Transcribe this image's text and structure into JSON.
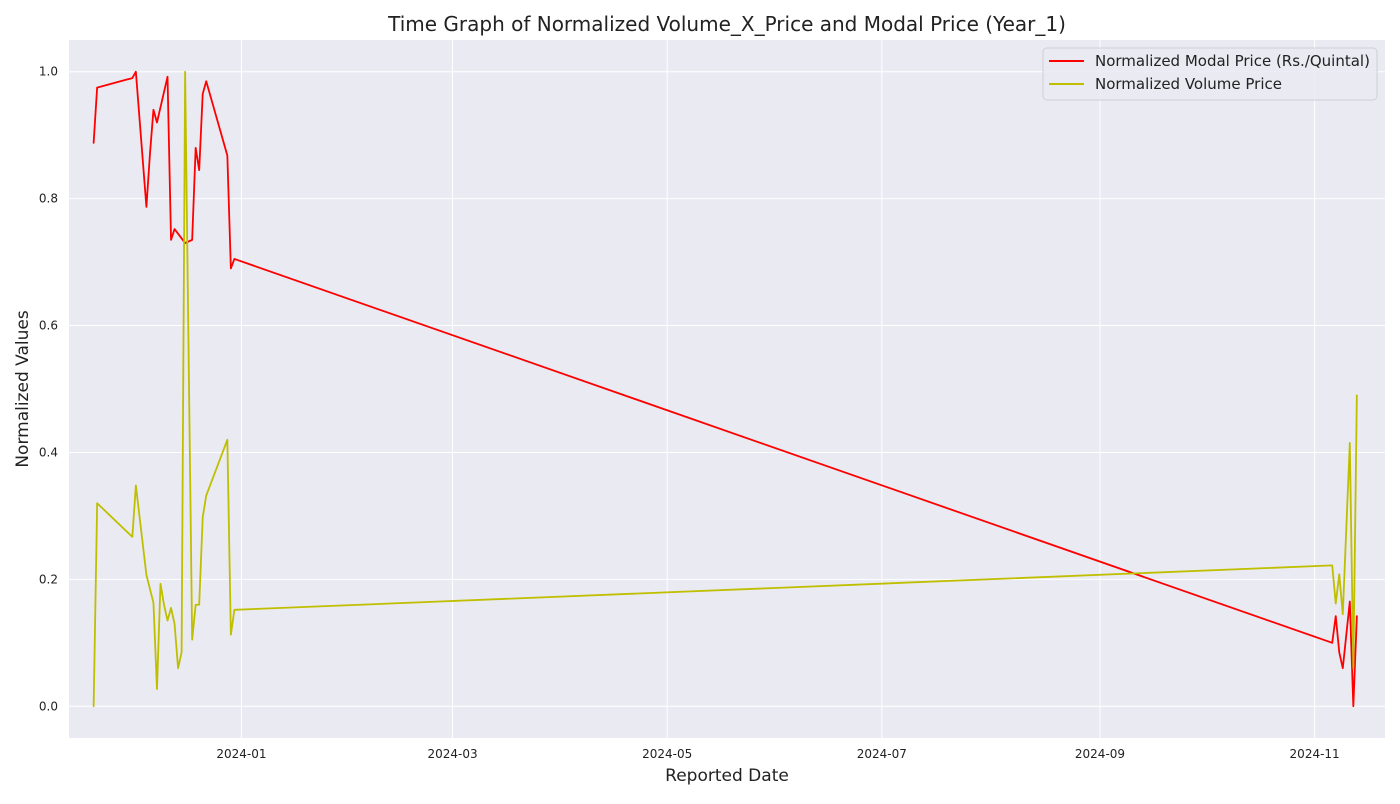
{
  "chart_data": {
    "type": "line",
    "title": "Time Graph of Normalized Volume_X_Price and Modal Price (Year_1)",
    "xlabel": "Reported Date",
    "ylabel": "Normalized Values",
    "x_type": "date",
    "xlim": [
      "2023-11-13",
      "2024-11-21"
    ],
    "ylim": [
      -0.05,
      1.05
    ],
    "x_ticks": [
      "2024-01",
      "2024-03",
      "2024-05",
      "2024-07",
      "2024-09",
      "2024-11"
    ],
    "x_tick_dates": [
      "2024-01-01",
      "2024-03-01",
      "2024-05-01",
      "2024-07-01",
      "2024-09-01",
      "2024-11-01"
    ],
    "y_ticks": [
      "0.0",
      "0.2",
      "0.4",
      "0.6",
      "0.8",
      "1.0"
    ],
    "y_tick_values": [
      0.0,
      0.2,
      0.4,
      0.6,
      0.8,
      1.0
    ],
    "grid": true,
    "legend_position": "top-right",
    "background_color": "#eaeaf2",
    "grid_color": "#ffffff",
    "series": [
      {
        "name": "Normalized Modal Price (Rs./Quintal)",
        "color": "#ff0000",
        "points": [
          [
            "2023-11-20",
            0.888
          ],
          [
            "2023-11-21",
            0.975
          ],
          [
            "2023-12-01",
            0.99
          ],
          [
            "2023-12-02",
            1.0
          ],
          [
            "2023-12-05",
            0.787
          ],
          [
            "2023-12-06",
            0.87
          ],
          [
            "2023-12-07",
            0.94
          ],
          [
            "2023-12-08",
            0.92
          ],
          [
            "2023-12-11",
            0.992
          ],
          [
            "2023-12-12",
            0.735
          ],
          [
            "2023-12-13",
            0.752
          ],
          [
            "2023-12-16",
            0.73
          ],
          [
            "2023-12-18",
            0.735
          ],
          [
            "2023-12-19",
            0.88
          ],
          [
            "2023-12-20",
            0.845
          ],
          [
            "2023-12-21",
            0.965
          ],
          [
            "2023-12-22",
            0.985
          ],
          [
            "2023-12-28",
            0.868
          ],
          [
            "2023-12-29",
            0.69
          ],
          [
            "2023-12-30",
            0.705
          ],
          [
            "2024-11-06",
            0.1
          ],
          [
            "2024-11-07",
            0.142
          ],
          [
            "2024-11-08",
            0.085
          ],
          [
            "2024-11-09",
            0.06
          ],
          [
            "2024-11-11",
            0.165
          ],
          [
            "2024-11-12",
            0.0
          ],
          [
            "2024-11-13",
            0.142
          ]
        ]
      },
      {
        "name": "Normalized Volume Price",
        "color": "#bfbf00",
        "points": [
          [
            "2023-11-20",
            0.0
          ],
          [
            "2023-11-21",
            0.32
          ],
          [
            "2023-12-01",
            0.267
          ],
          [
            "2023-12-02",
            0.348
          ],
          [
            "2023-12-05",
            0.207
          ],
          [
            "2023-12-07",
            0.163
          ],
          [
            "2023-12-08",
            0.027
          ],
          [
            "2023-12-09",
            0.193
          ],
          [
            "2023-12-10",
            0.16
          ],
          [
            "2023-12-11",
            0.135
          ],
          [
            "2023-12-12",
            0.155
          ],
          [
            "2023-12-13",
            0.13
          ],
          [
            "2023-12-14",
            0.06
          ],
          [
            "2023-12-15",
            0.085
          ],
          [
            "2023-12-16",
            1.0
          ],
          [
            "2023-12-18",
            0.105
          ],
          [
            "2023-12-19",
            0.16
          ],
          [
            "2023-12-20",
            0.16
          ],
          [
            "2023-12-21",
            0.298
          ],
          [
            "2023-12-22",
            0.332
          ],
          [
            "2023-12-28",
            0.42
          ],
          [
            "2023-12-29",
            0.113
          ],
          [
            "2023-12-30",
            0.152
          ],
          [
            "2024-11-06",
            0.222
          ],
          [
            "2024-11-07",
            0.162
          ],
          [
            "2024-11-08",
            0.208
          ],
          [
            "2024-11-09",
            0.145
          ],
          [
            "2024-11-11",
            0.415
          ],
          [
            "2024-11-12",
            0.06
          ],
          [
            "2024-11-13",
            0.49
          ]
        ]
      }
    ]
  }
}
